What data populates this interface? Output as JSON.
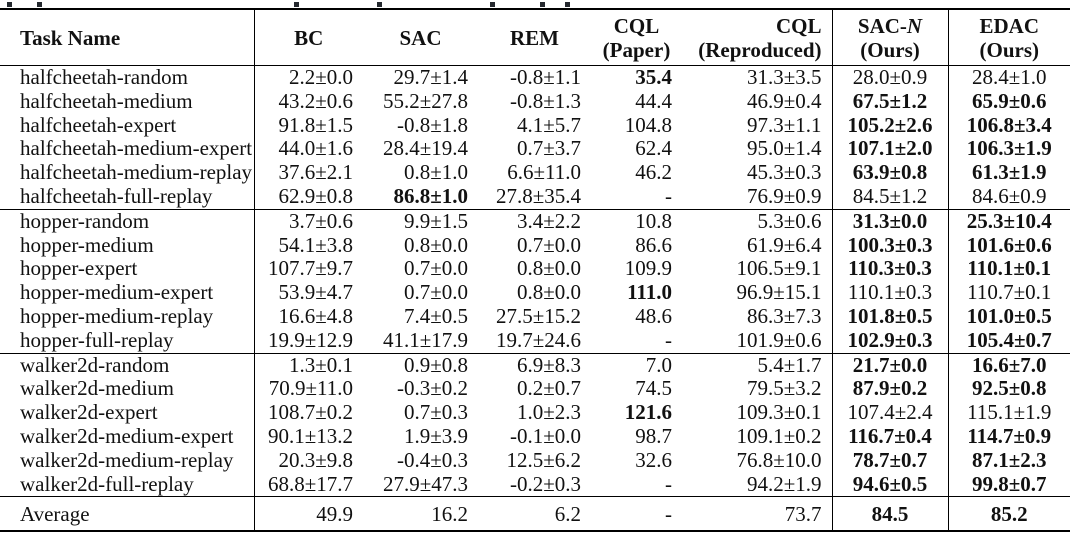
{
  "colors": {
    "background": "#ffffff",
    "text": "#111111",
    "rule": "#000000"
  },
  "table": {
    "header": {
      "task": "Task Name",
      "bc": "BC",
      "sac": "SAC",
      "rem": "REM",
      "cql_paper": {
        "line1": "CQL",
        "line2": "(Paper)"
      },
      "cql_reproduced": {
        "line1": "CQL",
        "line2": "(Reproduced)"
      },
      "sac_n": {
        "prefix": "SAC-",
        "n": "N",
        "line2": "(Ours)"
      },
      "edac": {
        "line1": "EDAC",
        "line2": "(Ours)"
      }
    },
    "column_keys": [
      "bc",
      "sac",
      "rem",
      "cql_paper",
      "cql_reproduced",
      "sac_n",
      "edac"
    ],
    "missing_value": "-",
    "groups": [
      {
        "name": "halfcheetah",
        "rows": [
          {
            "task": "halfcheetah-random",
            "values": [
              {
                "t": "2.2±0.0"
              },
              {
                "t": "29.7±1.4"
              },
              {
                "t": "-0.8±1.1"
              },
              {
                "t": "35.4",
                "b": true
              },
              {
                "t": "31.3±3.5"
              },
              {
                "t": "28.0±0.9"
              },
              {
                "t": "28.4±1.0"
              }
            ]
          },
          {
            "task": "halfcheetah-medium",
            "values": [
              {
                "t": "43.2±0.6"
              },
              {
                "t": "55.2±27.8"
              },
              {
                "t": "-0.8±1.3"
              },
              {
                "t": "44.4"
              },
              {
                "t": "46.9±0.4"
              },
              {
                "t": "67.5±1.2",
                "b": true
              },
              {
                "t": "65.9±0.6",
                "b": true
              }
            ]
          },
          {
            "task": "halfcheetah-expert",
            "values": [
              {
                "t": "91.8±1.5"
              },
              {
                "t": "-0.8±1.8"
              },
              {
                "t": "4.1±5.7"
              },
              {
                "t": "104.8"
              },
              {
                "t": "97.3±1.1"
              },
              {
                "t": "105.2±2.6",
                "b": true
              },
              {
                "t": "106.8±3.4",
                "b": true
              }
            ]
          },
          {
            "task": "halfcheetah-medium-expert",
            "values": [
              {
                "t": "44.0±1.6"
              },
              {
                "t": "28.4±19.4"
              },
              {
                "t": "0.7±3.7"
              },
              {
                "t": "62.4"
              },
              {
                "t": "95.0±1.4"
              },
              {
                "t": "107.1±2.0",
                "b": true
              },
              {
                "t": "106.3±1.9",
                "b": true
              }
            ]
          },
          {
            "task": "halfcheetah-medium-replay",
            "values": [
              {
                "t": "37.6±2.1"
              },
              {
                "t": "0.8±1.0"
              },
              {
                "t": "6.6±11.0"
              },
              {
                "t": "46.2"
              },
              {
                "t": "45.3±0.3"
              },
              {
                "t": "63.9±0.8",
                "b": true
              },
              {
                "t": "61.3±1.9",
                "b": true
              }
            ]
          },
          {
            "task": "halfcheetah-full-replay",
            "values": [
              {
                "t": "62.9±0.8"
              },
              {
                "t": "86.8±1.0",
                "b": true
              },
              {
                "t": "27.8±35.4"
              },
              {
                "t": "-"
              },
              {
                "t": "76.9±0.9"
              },
              {
                "t": "84.5±1.2"
              },
              {
                "t": "84.6±0.9"
              }
            ]
          }
        ]
      },
      {
        "name": "hopper",
        "rows": [
          {
            "task": "hopper-random",
            "values": [
              {
                "t": "3.7±0.6"
              },
              {
                "t": "9.9±1.5"
              },
              {
                "t": "3.4±2.2"
              },
              {
                "t": "10.8"
              },
              {
                "t": "5.3±0.6"
              },
              {
                "t": "31.3±0.0",
                "b": true
              },
              {
                "t": "25.3±10.4",
                "b": true
              }
            ]
          },
          {
            "task": "hopper-medium",
            "values": [
              {
                "t": "54.1±3.8"
              },
              {
                "t": "0.8±0.0"
              },
              {
                "t": "0.7±0.0"
              },
              {
                "t": "86.6"
              },
              {
                "t": "61.9±6.4"
              },
              {
                "t": "100.3±0.3",
                "b": true
              },
              {
                "t": "101.6±0.6",
                "b": true
              }
            ]
          },
          {
            "task": "hopper-expert",
            "values": [
              {
                "t": "107.7±9.7"
              },
              {
                "t": "0.7±0.0"
              },
              {
                "t": "0.8±0.0"
              },
              {
                "t": "109.9"
              },
              {
                "t": "106.5±9.1"
              },
              {
                "t": "110.3±0.3",
                "b": true
              },
              {
                "t": "110.1±0.1",
                "b": true
              }
            ]
          },
          {
            "task": "hopper-medium-expert",
            "values": [
              {
                "t": "53.9±4.7"
              },
              {
                "t": "0.7±0.0"
              },
              {
                "t": "0.8±0.0"
              },
              {
                "t": "111.0",
                "b": true
              },
              {
                "t": "96.9±15.1"
              },
              {
                "t": "110.1±0.3"
              },
              {
                "t": "110.7±0.1"
              }
            ]
          },
          {
            "task": "hopper-medium-replay",
            "values": [
              {
                "t": "16.6±4.8"
              },
              {
                "t": "7.4±0.5"
              },
              {
                "t": "27.5±15.2"
              },
              {
                "t": "48.6"
              },
              {
                "t": "86.3±7.3"
              },
              {
                "t": "101.8±0.5",
                "b": true
              },
              {
                "t": "101.0±0.5",
                "b": true
              }
            ]
          },
          {
            "task": "hopper-full-replay",
            "values": [
              {
                "t": "19.9±12.9"
              },
              {
                "t": "41.1±17.9"
              },
              {
                "t": "19.7±24.6"
              },
              {
                "t": "-"
              },
              {
                "t": "101.9±0.6"
              },
              {
                "t": "102.9±0.3",
                "b": true
              },
              {
                "t": "105.4±0.7",
                "b": true
              }
            ]
          }
        ]
      },
      {
        "name": "walker2d",
        "rows": [
          {
            "task": "walker2d-random",
            "values": [
              {
                "t": "1.3±0.1"
              },
              {
                "t": "0.9±0.8"
              },
              {
                "t": "6.9±8.3"
              },
              {
                "t": "7.0"
              },
              {
                "t": "5.4±1.7"
              },
              {
                "t": "21.7±0.0",
                "b": true
              },
              {
                "t": "16.6±7.0",
                "b": true
              }
            ]
          },
          {
            "task": "walker2d-medium",
            "values": [
              {
                "t": "70.9±11.0"
              },
              {
                "t": "-0.3±0.2"
              },
              {
                "t": "0.2±0.7"
              },
              {
                "t": "74.5"
              },
              {
                "t": "79.5±3.2"
              },
              {
                "t": "87.9±0.2",
                "b": true
              },
              {
                "t": "92.5±0.8",
                "b": true
              }
            ]
          },
          {
            "task": "walker2d-expert",
            "values": [
              {
                "t": "108.7±0.2"
              },
              {
                "t": "0.7±0.3"
              },
              {
                "t": "1.0±2.3"
              },
              {
                "t": "121.6",
                "b": true
              },
              {
                "t": "109.3±0.1"
              },
              {
                "t": "107.4±2.4"
              },
              {
                "t": "115.1±1.9"
              }
            ]
          },
          {
            "task": "walker2d-medium-expert",
            "values": [
              {
                "t": "90.1±13.2"
              },
              {
                "t": "1.9±3.9"
              },
              {
                "t": "-0.1±0.0"
              },
              {
                "t": "98.7"
              },
              {
                "t": "109.1±0.2"
              },
              {
                "t": "116.7±0.4",
                "b": true
              },
              {
                "t": "114.7±0.9",
                "b": true
              }
            ]
          },
          {
            "task": "walker2d-medium-replay",
            "values": [
              {
                "t": "20.3±9.8"
              },
              {
                "t": "-0.4±0.3"
              },
              {
                "t": "12.5±6.2"
              },
              {
                "t": "32.6"
              },
              {
                "t": "76.8±10.0"
              },
              {
                "t": "78.7±0.7",
                "b": true
              },
              {
                "t": "87.1±2.3",
                "b": true
              }
            ]
          },
          {
            "task": "walker2d-full-replay",
            "values": [
              {
                "t": "68.8±17.7"
              },
              {
                "t": "27.9±47.3"
              },
              {
                "t": "-0.2±0.3"
              },
              {
                "t": "-"
              },
              {
                "t": "94.2±1.9"
              },
              {
                "t": "94.6±0.5",
                "b": true
              },
              {
                "t": "99.8±0.7",
                "b": true
              }
            ]
          }
        ]
      }
    ],
    "average": {
      "label": "Average",
      "values": [
        {
          "t": "49.9"
        },
        {
          "t": "16.2"
        },
        {
          "t": "6.2"
        },
        {
          "t": "-"
        },
        {
          "t": "73.7"
        },
        {
          "t": "84.5",
          "b": true
        },
        {
          "t": "85.2",
          "b": true
        }
      ]
    }
  }
}
